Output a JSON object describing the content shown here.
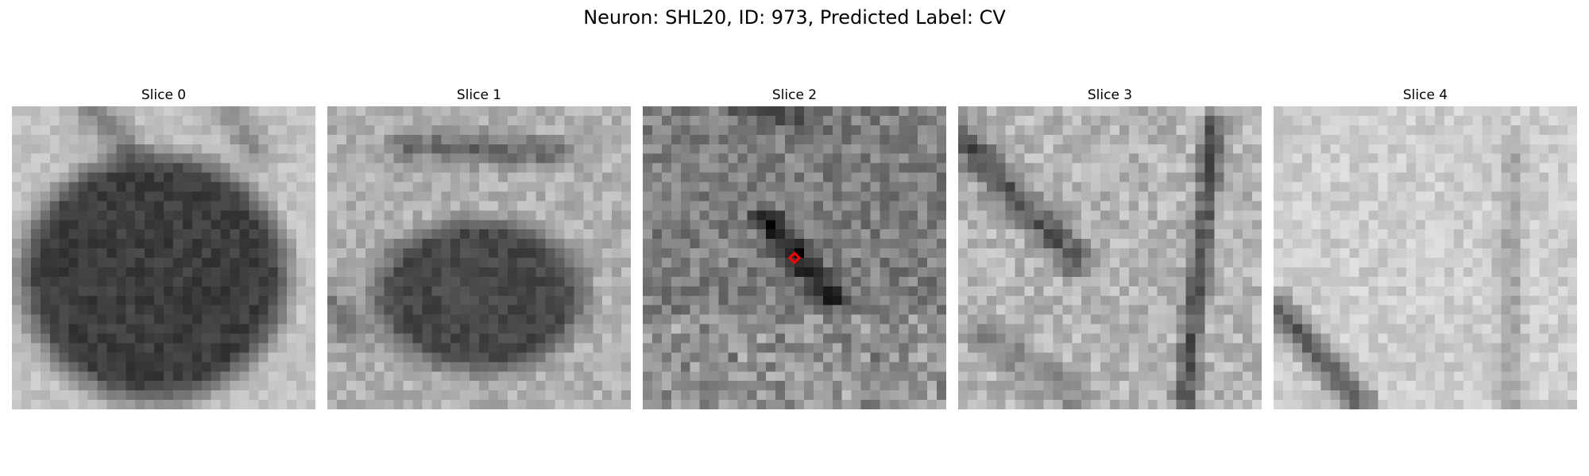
{
  "figure": {
    "title": "Neuron: SHL20, ID: 973, Predicted Label: CV",
    "marker_color": "#ff0000",
    "colormap": "grayscale"
  },
  "panels": [
    {
      "title": "Slice 0",
      "content": "dark rounded cell body filling most of the view on a light background",
      "marker": false
    },
    {
      "title": "Slice 1",
      "content": "dark oval cell body in the lower center, lighter surroundings",
      "marker": false
    },
    {
      "title": "Slice 2",
      "content": "noisy medium-gray texture with a small dark diagonal streak at center",
      "marker": true
    },
    {
      "title": "Slice 3",
      "content": "light noisy texture with dark diagonal band upper-left and dark vertical band at right",
      "marker": false
    },
    {
      "title": "Slice 4",
      "content": "mostly light texture with a dark diagonal band at lower-left",
      "marker": false
    }
  ]
}
